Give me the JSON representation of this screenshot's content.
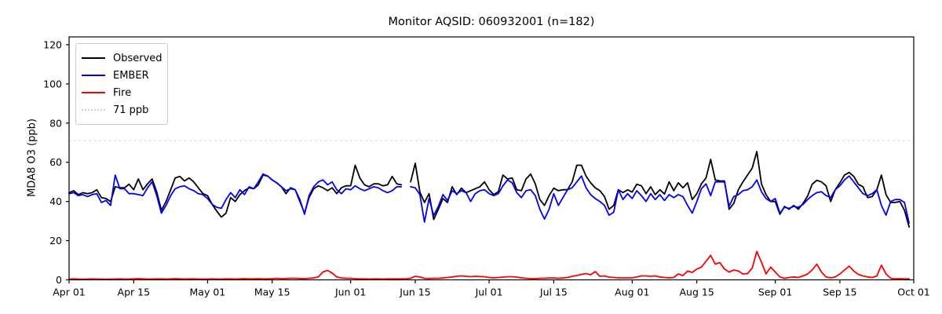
{
  "chart_data": {
    "type": "line",
    "title": "Monitor AQSID: 060932001 (n=182)",
    "xlabel": "",
    "ylabel": "MDA8 O3 (ppb)",
    "ylim": [
      0,
      124
    ],
    "y_ticks": [
      0,
      20,
      40,
      60,
      80,
      100,
      120
    ],
    "x_span_days": 183,
    "x_ticks": [
      {
        "label": "Apr 01",
        "day": 0
      },
      {
        "label": "Apr 15",
        "day": 14
      },
      {
        "label": "May 01",
        "day": 30
      },
      {
        "label": "May 15",
        "day": 44
      },
      {
        "label": "Jun 01",
        "day": 61
      },
      {
        "label": "Jun 15",
        "day": 75
      },
      {
        "label": "Jul 01",
        "day": 91
      },
      {
        "label": "Jul 15",
        "day": 105
      },
      {
        "label": "Aug 01",
        "day": 122
      },
      {
        "label": "Aug 15",
        "day": 136
      },
      {
        "label": "Sep 01",
        "day": 153
      },
      {
        "label": "Sep 15",
        "day": 167
      },
      {
        "label": "Oct 01",
        "day": 183
      }
    ],
    "threshold": {
      "value": 71,
      "label": "71 ppb",
      "color": "#d3d3d3",
      "style": "dotted"
    },
    "grid": false,
    "legend_position": "upper-left",
    "series": [
      {
        "name": "Observed",
        "color": "#000000",
        "values": [
          44.5,
          45.5,
          43.5,
          44.5,
          44,
          44.5,
          46,
          42,
          41.5,
          40,
          47.5,
          47,
          47,
          48.8,
          46,
          51.5,
          46,
          49,
          51.5,
          44.8,
          35.5,
          40,
          46,
          52,
          52.8,
          50.5,
          52,
          50,
          47,
          44,
          43,
          38.5,
          35,
          32,
          34,
          42,
          40,
          43.5,
          45.5,
          47,
          46.5,
          48.5,
          53.5,
          53,
          51,
          49.5,
          47.5,
          44,
          47,
          46,
          40,
          34,
          42,
          46.5,
          48,
          47,
          45.5,
          47,
          44,
          47,
          48,
          48,
          58.5,
          52,
          48.5,
          47.5,
          49,
          49,
          48,
          48.5,
          52.8,
          49,
          48.5,
          null,
          50,
          59.5,
          44.8,
          39.5,
          44,
          30.8,
          36,
          41.5,
          39.5,
          47.5,
          43.5,
          46.8,
          44.5,
          45.5,
          46.5,
          47.5,
          50,
          46,
          43.5,
          45,
          53.5,
          51.5,
          52,
          46,
          45.5,
          51.5,
          54,
          49,
          41,
          38,
          43,
          46.8,
          45.5,
          46,
          46,
          50,
          58.5,
          58.5,
          53,
          49.5,
          47,
          45.5,
          42.5,
          36,
          38,
          46,
          44.5,
          46,
          44.8,
          48.8,
          48,
          44,
          47.5,
          43.5,
          46,
          43.8,
          50,
          45.5,
          49.5,
          47,
          49.5,
          41,
          44,
          49,
          52,
          61.5,
          51,
          50.5,
          50.5,
          36,
          39,
          46,
          50,
          53.5,
          57,
          65.5,
          49,
          43.5,
          40,
          40,
          33.5,
          37.5,
          36,
          38,
          36,
          39,
          42.8,
          48.8,
          50.8,
          50,
          48,
          40,
          46,
          49.5,
          53.5,
          54.8,
          52.8,
          48.8,
          47.5,
          42,
          42.5,
          46,
          53.5,
          43.5,
          39.5,
          39.5,
          40,
          35.5,
          27
        ]
      },
      {
        "name": "EMBER",
        "color": "#0000ff",
        "values": [
          44,
          44.5,
          43,
          43.5,
          42.5,
          43.5,
          44,
          39.5,
          40.5,
          38,
          53.5,
          46.5,
          46.5,
          44,
          44,
          43.5,
          43,
          47,
          50,
          43,
          34,
          38,
          43,
          46.5,
          47.5,
          48,
          46.5,
          45.5,
          44,
          43.5,
          41.5,
          38.5,
          37,
          36.5,
          41,
          44.5,
          42,
          46,
          43.5,
          47.5,
          46.5,
          50,
          54,
          53,
          51,
          49.5,
          47.5,
          45.5,
          46.5,
          46,
          41,
          33.5,
          43,
          47.5,
          50,
          51,
          48.5,
          50,
          46,
          44,
          46.5,
          46,
          48,
          46.5,
          45.5,
          46.5,
          47.5,
          47,
          45.5,
          44.5,
          45.5,
          47.5,
          47.5,
          null,
          47.5,
          47,
          43.5,
          29.5,
          41.5,
          32.8,
          37.5,
          43.5,
          40.5,
          45.5,
          44,
          45.5,
          44.5,
          40,
          44,
          45.5,
          46,
          44,
          43,
          44,
          48,
          51,
          49.5,
          44.5,
          42,
          45.5,
          46,
          43,
          36,
          31,
          36,
          44,
          38,
          42,
          46,
          47,
          50,
          53,
          47,
          43.5,
          41.5,
          40,
          38,
          33,
          34.5,
          46,
          41,
          44,
          41.5,
          45.5,
          43,
          40,
          44,
          41,
          43.5,
          40.5,
          43.5,
          42,
          43.5,
          42.5,
          38,
          34,
          40,
          46.5,
          49,
          43,
          50,
          50,
          50,
          37.5,
          42.5,
          43.5,
          45.5,
          46,
          47.5,
          51,
          45,
          41.5,
          40,
          41.5,
          34,
          37,
          36.5,
          37.5,
          37,
          38.5,
          41,
          43,
          44.5,
          45,
          43,
          42,
          46,
          48,
          51,
          53,
          50,
          47,
          44,
          43,
          44,
          46,
          38,
          33,
          40,
          41,
          41,
          39.5,
          29
        ]
      },
      {
        "name": "Fire",
        "color": "#ff0000",
        "values": [
          0.4,
          0.5,
          0.4,
          0.3,
          0.4,
          0.5,
          0.4,
          0.4,
          0.3,
          0.4,
          0.4,
          0.5,
          0.4,
          0.4,
          0.5,
          0.6,
          0.5,
          0.4,
          0.4,
          0.5,
          0.5,
          0.4,
          0.5,
          0.6,
          0.5,
          0.4,
          0.5,
          0.5,
          0.4,
          0.4,
          0.4,
          0.5,
          0.4,
          0.4,
          0.5,
          0.5,
          0.4,
          0.5,
          0.6,
          0.5,
          0.5,
          0.6,
          0.5,
          0.5,
          0.6,
          0.8,
          0.6,
          0.7,
          0.8,
          0.8,
          0.7,
          0.6,
          0.8,
          1.0,
          1.5,
          4.0,
          4.8,
          3.5,
          1.5,
          1.0,
          0.8,
          0.8,
          0.6,
          0.5,
          0.5,
          0.4,
          0.5,
          0.5,
          0.4,
          0.5,
          0.5,
          0.5,
          0.5,
          0.5,
          0.8,
          1.8,
          1.5,
          0.8,
          0.7,
          0.8,
          0.8,
          1.0,
          1.2,
          1.5,
          1.8,
          2.0,
          1.8,
          1.6,
          1.8,
          1.7,
          1.6,
          1.2,
          1.0,
          1.2,
          1.4,
          1.6,
          1.6,
          1.4,
          1.0,
          0.8,
          0.6,
          0.6,
          0.8,
          0.8,
          1.0,
          1.0,
          0.8,
          1.0,
          1.2,
          1.8,
          2.2,
          2.8,
          3.2,
          2.6,
          4.2,
          1.8,
          2.0,
          1.4,
          1.2,
          1.0,
          1.0,
          1.0,
          1.0,
          1.5,
          2.0,
          2.0,
          1.8,
          2.0,
          1.5,
          1.2,
          1.0,
          1.2,
          3.0,
          2.2,
          4.5,
          3.8,
          5.5,
          6.5,
          9.5,
          12.5,
          8.0,
          8.8,
          5.5,
          4.0,
          5.0,
          4.5,
          3.0,
          3.2,
          6.0,
          14.5,
          9.0,
          3.0,
          6.5,
          4.0,
          1.5,
          0.8,
          1.2,
          1.5,
          1.2,
          2.0,
          3.0,
          5.0,
          8.0,
          4.0,
          1.5,
          1.0,
          1.5,
          3.0,
          5.0,
          7.0,
          4.5,
          2.8,
          2.0,
          1.5,
          1.2,
          2.0,
          7.5,
          3.0,
          0.8,
          0.5,
          0.6,
          0.5,
          0.5
        ]
      }
    ]
  },
  "legend": {
    "items": [
      {
        "label": "Observed",
        "color": "#000000",
        "style": "solid"
      },
      {
        "label": "EMBER",
        "color": "#0000ff",
        "style": "solid"
      },
      {
        "label": "Fire",
        "color": "#ff0000",
        "style": "solid"
      },
      {
        "label": "71 ppb",
        "color": "#d3d3d3",
        "style": "dotted"
      }
    ]
  }
}
